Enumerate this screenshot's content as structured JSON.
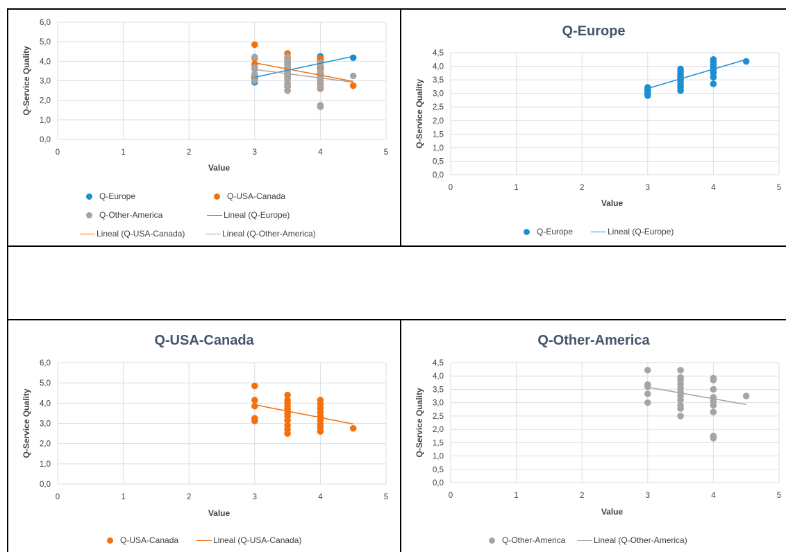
{
  "colors": {
    "europe": "#1b8fd2",
    "usa": "#f4700d",
    "other": "#a5a5a5",
    "grid": "#d9dde6",
    "axis_text": "#404040",
    "title": "#44546a"
  },
  "charts": [
    {
      "id": "combined",
      "title": "",
      "xlabel": "Value",
      "ylabel": "Q-Service Quality",
      "xlim": [
        0,
        5
      ],
      "ylim": [
        0,
        6
      ],
      "xticks": [
        "0",
        "1",
        "2",
        "3",
        "4",
        "5"
      ],
      "yticks": [
        "0,0",
        "1,0",
        "2,0",
        "3,0",
        "4,0",
        "5,0",
        "6,0"
      ],
      "legend": [
        "Q-Europe",
        "Q-USA-Canada",
        "Q-Other-America",
        "Lineal (Q-Europe)",
        "Lineal (Q-USA-Canada)",
        "Lineal (Q-Other-America)"
      ]
    },
    {
      "id": "europe",
      "title": "Q-Europe",
      "xlabel": "Value",
      "ylabel": "Q-Service Quality",
      "xlim": [
        0,
        5
      ],
      "ylim": [
        0,
        4.5
      ],
      "xticks": [
        "0",
        "1",
        "2",
        "3",
        "4",
        "5"
      ],
      "yticks": [
        "0,0",
        "0,5",
        "1,0",
        "1,5",
        "2,0",
        "2,5",
        "3,0",
        "3,5",
        "4,0",
        "4,5"
      ],
      "legend": [
        "Q-Europe",
        "Lineal (Q-Europe)"
      ]
    },
    {
      "id": "usa",
      "title": "Q-USA-Canada",
      "xlabel": "Value",
      "ylabel": "Q-Service Quality",
      "xlim": [
        0,
        5
      ],
      "ylim": [
        0,
        6
      ],
      "xticks": [
        "0",
        "1",
        "2",
        "3",
        "4",
        "5"
      ],
      "yticks": [
        "0,0",
        "1,0",
        "2,0",
        "3,0",
        "4,0",
        "5,0",
        "6,0"
      ],
      "legend": [
        "Q-USA-Canada",
        "Lineal (Q-USA-Canada)"
      ]
    },
    {
      "id": "other",
      "title": "Q-Other-America",
      "xlabel": "Value",
      "ylabel": "Q-Service Quality",
      "xlim": [
        0,
        5
      ],
      "ylim": [
        0,
        4.5
      ],
      "xticks": [
        "0",
        "1",
        "2",
        "3",
        "4",
        "5"
      ],
      "yticks": [
        "0,0",
        "0,5",
        "1,0",
        "1,5",
        "2,0",
        "2,5",
        "3,0",
        "3,5",
        "4,0",
        "4,5"
      ],
      "legend": [
        "Q-Other-America",
        "Lineal (Q-Other-America)"
      ]
    }
  ],
  "chart_data": {
    "type": "scatter",
    "xlabel": "Value",
    "ylabel": "Q-Service Quality",
    "series": [
      {
        "name": "Q-Europe",
        "color": "#1b8fd2",
        "points": [
          [
            3,
            2.92
          ],
          [
            3,
            3.0
          ],
          [
            3,
            3.08
          ],
          [
            3,
            3.15
          ],
          [
            3,
            3.22
          ],
          [
            3.5,
            3.1
          ],
          [
            3.5,
            3.22
          ],
          [
            3.5,
            3.3
          ],
          [
            3.5,
            3.4
          ],
          [
            3.5,
            3.5
          ],
          [
            3.5,
            3.6
          ],
          [
            3.5,
            3.7
          ],
          [
            3.5,
            3.8
          ],
          [
            3.5,
            3.9
          ],
          [
            4,
            3.35
          ],
          [
            4,
            3.6
          ],
          [
            4,
            3.75
          ],
          [
            4,
            3.85
          ],
          [
            4,
            3.95
          ],
          [
            4,
            4.05
          ],
          [
            4,
            4.15
          ],
          [
            4,
            4.25
          ],
          [
            4.5,
            4.18
          ]
        ],
        "trend": [
          [
            3,
            3.18
          ],
          [
            4.5,
            4.25
          ]
        ]
      },
      {
        "name": "Q-USA-Canada",
        "color": "#f4700d",
        "points": [
          [
            3,
            3.12
          ],
          [
            3,
            3.25
          ],
          [
            3,
            3.85
          ],
          [
            3,
            4.15
          ],
          [
            3,
            4.85
          ],
          [
            3.5,
            2.5
          ],
          [
            3.5,
            2.7
          ],
          [
            3.5,
            2.9
          ],
          [
            3.5,
            3.15
          ],
          [
            3.5,
            3.35
          ],
          [
            3.5,
            3.5
          ],
          [
            3.5,
            3.7
          ],
          [
            3.5,
            3.85
          ],
          [
            3.5,
            4.0
          ],
          [
            3.5,
            4.15
          ],
          [
            3.5,
            4.4
          ],
          [
            4,
            2.6
          ],
          [
            4,
            2.8
          ],
          [
            4,
            2.95
          ],
          [
            4,
            3.15
          ],
          [
            4,
            3.35
          ],
          [
            4,
            3.55
          ],
          [
            4,
            3.75
          ],
          [
            4,
            3.95
          ],
          [
            4,
            4.15
          ],
          [
            4.5,
            2.75
          ]
        ],
        "trend": [
          [
            3,
            3.92
          ],
          [
            4.5,
            2.97
          ]
        ]
      },
      {
        "name": "Q-Other-America",
        "color": "#a5a5a5",
        "points": [
          [
            3,
            3.0
          ],
          [
            3,
            3.33
          ],
          [
            3,
            3.6
          ],
          [
            3,
            3.68
          ],
          [
            3,
            4.22
          ],
          [
            3.5,
            2.5
          ],
          [
            3.5,
            2.78
          ],
          [
            3.5,
            2.9
          ],
          [
            3.5,
            3.1
          ],
          [
            3.5,
            3.25
          ],
          [
            3.5,
            3.4
          ],
          [
            3.5,
            3.55
          ],
          [
            3.5,
            3.7
          ],
          [
            3.5,
            3.85
          ],
          [
            3.5,
            3.95
          ],
          [
            3.5,
            4.22
          ],
          [
            4,
            1.67
          ],
          [
            4,
            1.75
          ],
          [
            4,
            2.65
          ],
          [
            4,
            2.9
          ],
          [
            4,
            3.05
          ],
          [
            4,
            3.2
          ],
          [
            4,
            3.5
          ],
          [
            4,
            3.85
          ],
          [
            4,
            3.92
          ],
          [
            4.5,
            3.25
          ]
        ],
        "trend": [
          [
            3,
            3.58
          ],
          [
            4.5,
            2.93
          ]
        ]
      }
    ]
  }
}
